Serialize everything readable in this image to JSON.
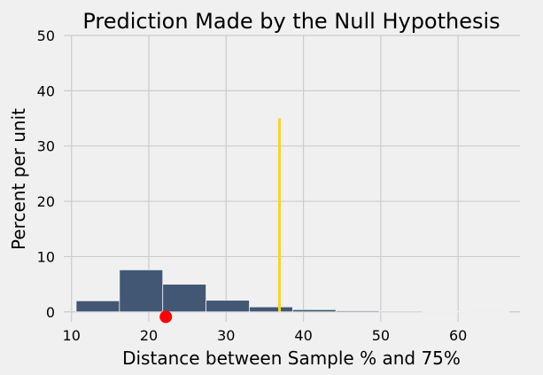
{
  "chart_data": {
    "type": "histogram",
    "title": "Prediction Made by the Null Hypothesis",
    "xlabel": "Distance between Sample % and 75%",
    "ylabel": "Percent per unit",
    "xlim": [
      9.0,
      68.0
    ],
    "ylim": [
      -1.8,
      50
    ],
    "xticks": [
      10,
      20,
      30,
      40,
      50,
      60
    ],
    "yticks": [
      0,
      10,
      20,
      30,
      40,
      50
    ],
    "grid": true,
    "bins": [
      {
        "start": 10.6,
        "end": 16.2,
        "value": 2.0
      },
      {
        "start": 16.2,
        "end": 21.8,
        "value": 7.6
      },
      {
        "start": 21.8,
        "end": 27.4,
        "value": 5.0
      },
      {
        "start": 27.4,
        "end": 33.0,
        "value": 2.1
      },
      {
        "start": 33.0,
        "end": 38.6,
        "value": 0.9
      },
      {
        "start": 38.6,
        "end": 44.2,
        "value": 0.4
      },
      {
        "start": 44.2,
        "end": 49.8,
        "value": 0.2
      },
      {
        "start": 49.8,
        "end": 55.4,
        "value": 0.15
      },
      {
        "start": 55.4,
        "end": 61.0,
        "value": 0.08
      },
      {
        "start": 61.0,
        "end": 66.6,
        "value": 0.05
      }
    ],
    "vertical_line": {
      "x": 36.9,
      "y_from": 0,
      "y_to": 35
    },
    "marker": {
      "x": 22.2,
      "y": -0.9
    },
    "colors": {
      "bars": "#425774",
      "vertical_line": "#ffd700",
      "marker": "#ff0000",
      "grid": "#cbcbcb",
      "background": "#f0f0f0"
    }
  }
}
